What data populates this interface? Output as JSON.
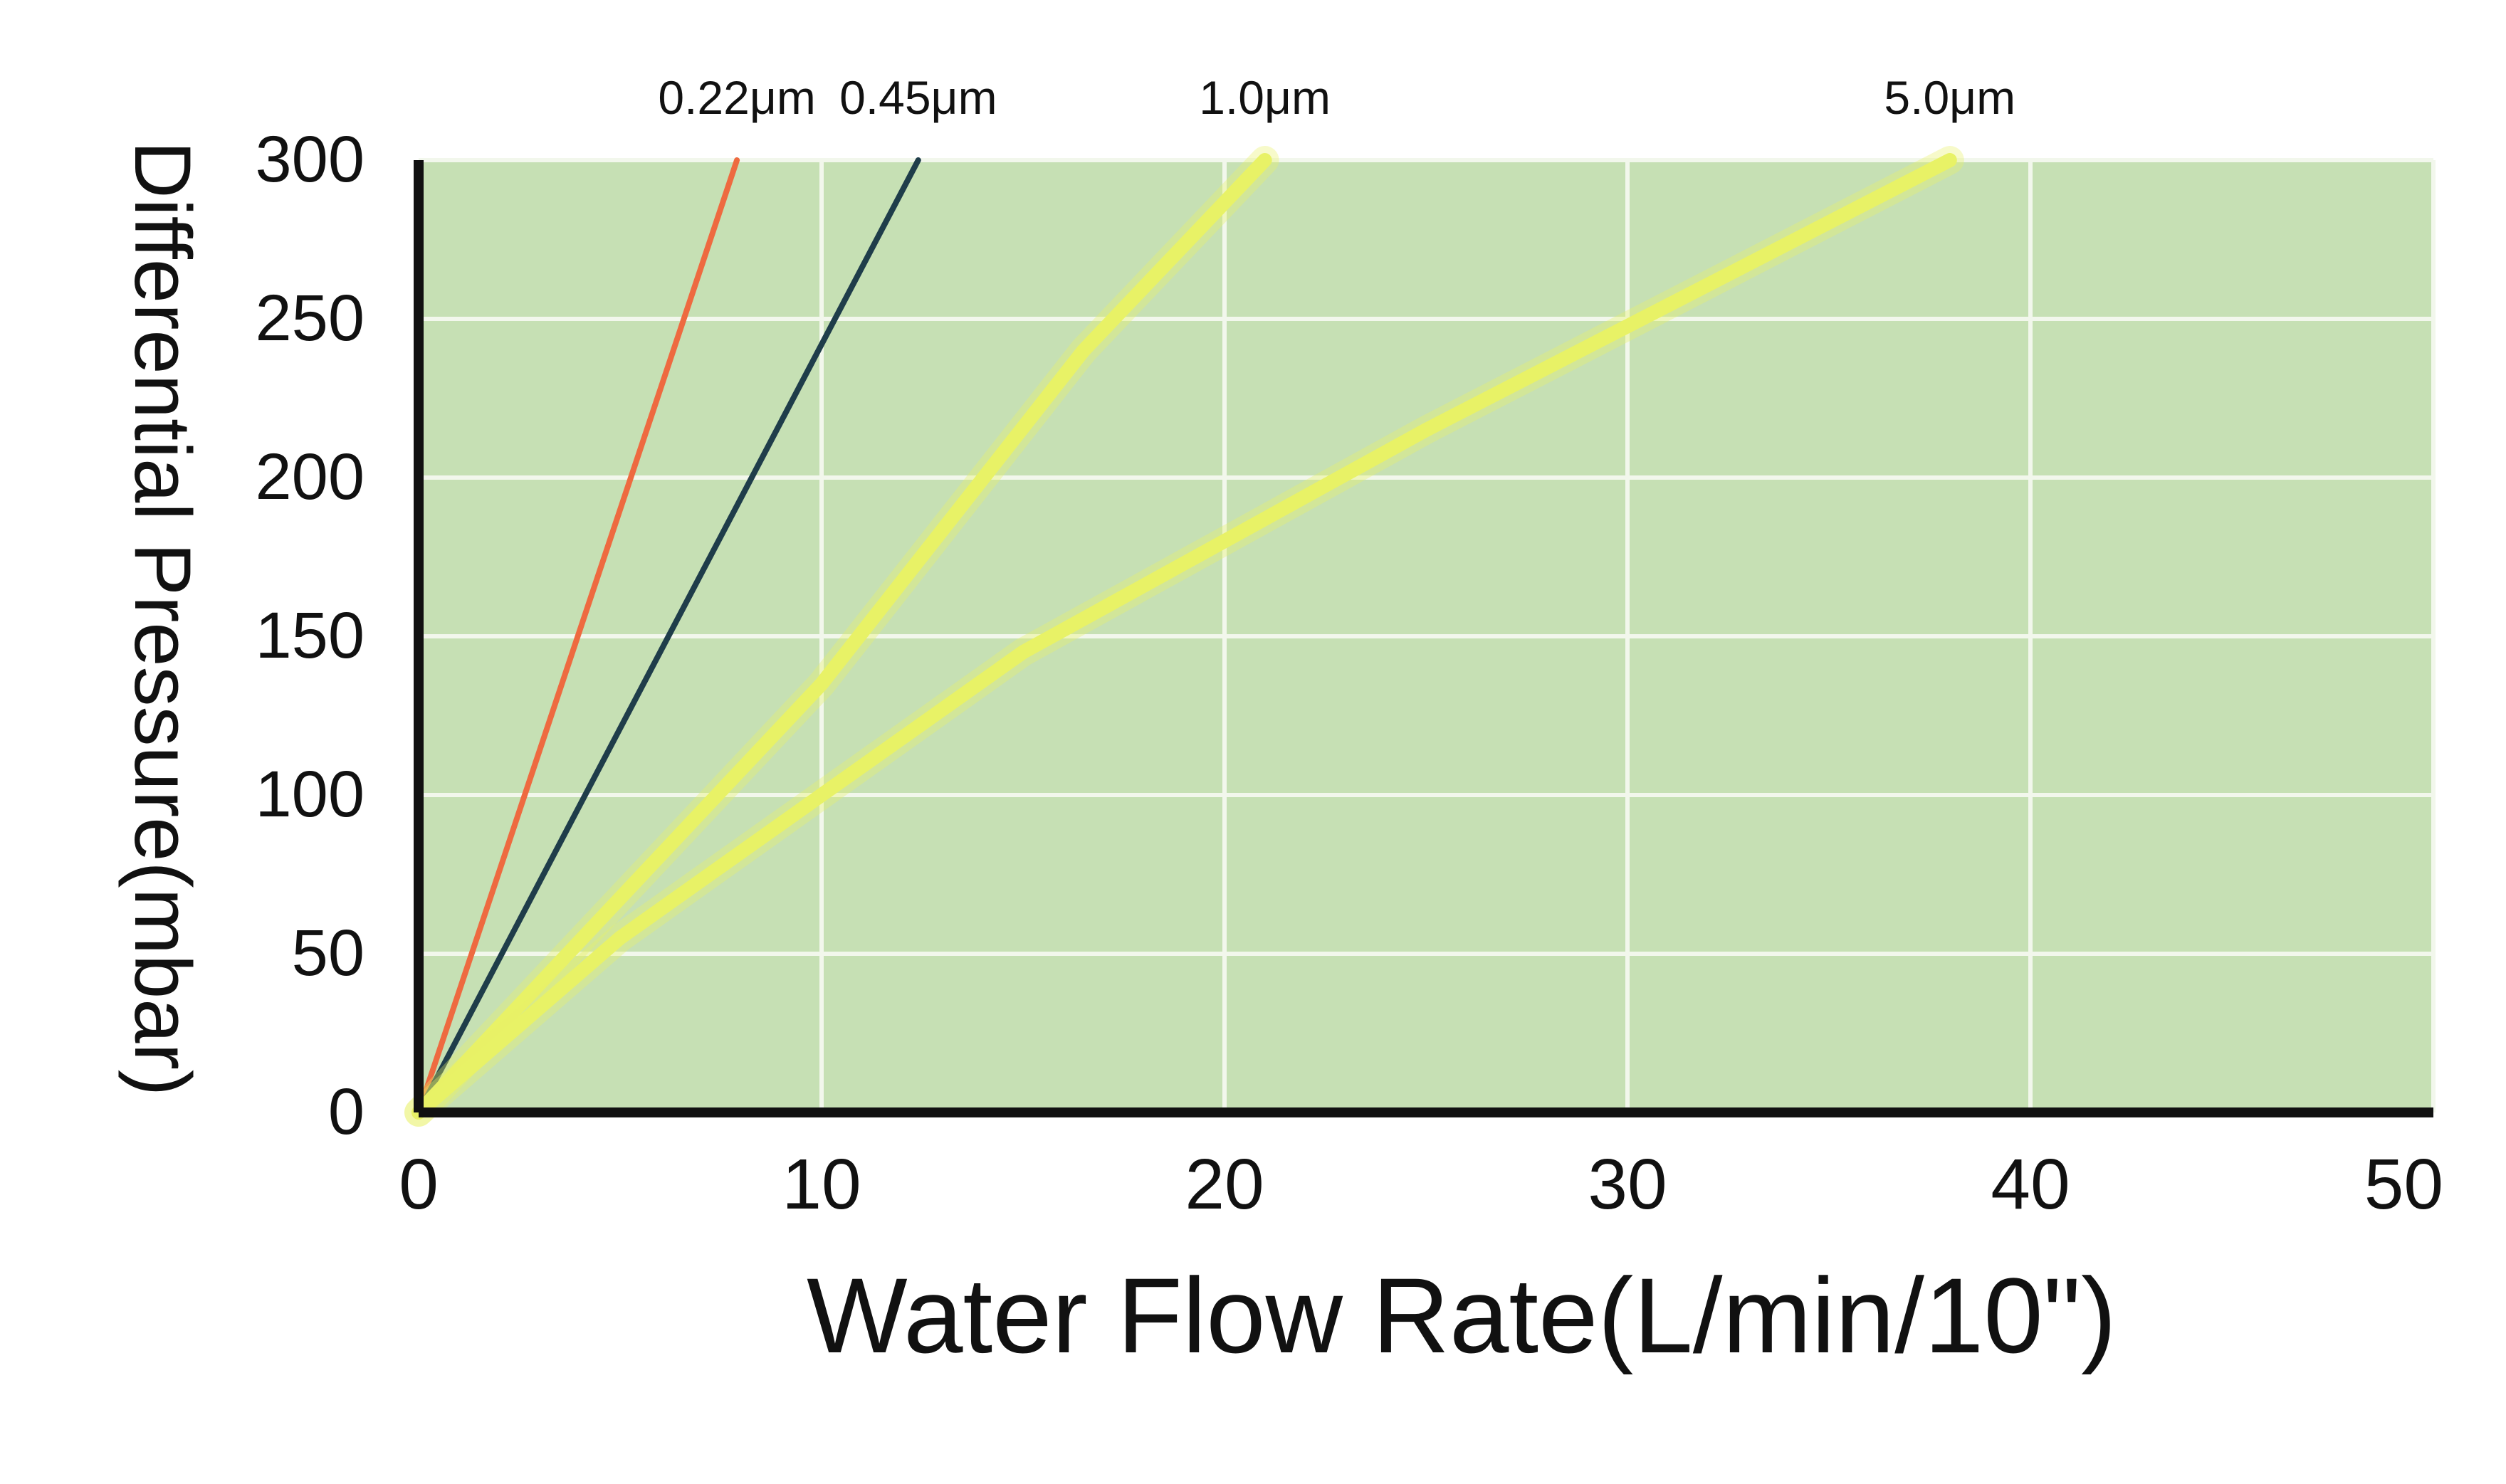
{
  "chart_data": {
    "type": "line",
    "title": "",
    "xlabel": "Water Flow Rate(L/min/10\")",
    "ylabel": "Differential Pressure(mbar)",
    "xlim": [
      0,
      50
    ],
    "ylim": [
      0,
      300
    ],
    "x_ticks": [
      "0",
      "10",
      "20",
      "30",
      "40",
      "50"
    ],
    "y_ticks": [
      "0",
      "50",
      "100",
      "150",
      "200",
      "250",
      "300"
    ],
    "grid": true,
    "colors": {
      "background": "#c6e0b4",
      "grid": "#f2f7ec",
      "axis": "#111111"
    },
    "series": [
      {
        "name": "0.22μm",
        "color": "#ee6a40",
        "width": "thin",
        "x": [
          0,
          7.9
        ],
        "y": [
          0,
          300
        ]
      },
      {
        "name": "0.45μm",
        "color": "#1f3d4a",
        "width": "thin",
        "x": [
          0,
          12.4
        ],
        "y": [
          0,
          300
        ]
      },
      {
        "name": "1.0μm",
        "color": "#e8f266",
        "width": "thick",
        "x": [
          0,
          10,
          16.5,
          21
        ],
        "y": [
          0,
          135,
          240,
          300
        ]
      },
      {
        "name": "5.0μm",
        "color": "#e8f266",
        "width": "thick",
        "x": [
          0,
          5,
          15,
          25,
          38
        ],
        "y": [
          0,
          55,
          145,
          215,
          300
        ]
      }
    ]
  }
}
